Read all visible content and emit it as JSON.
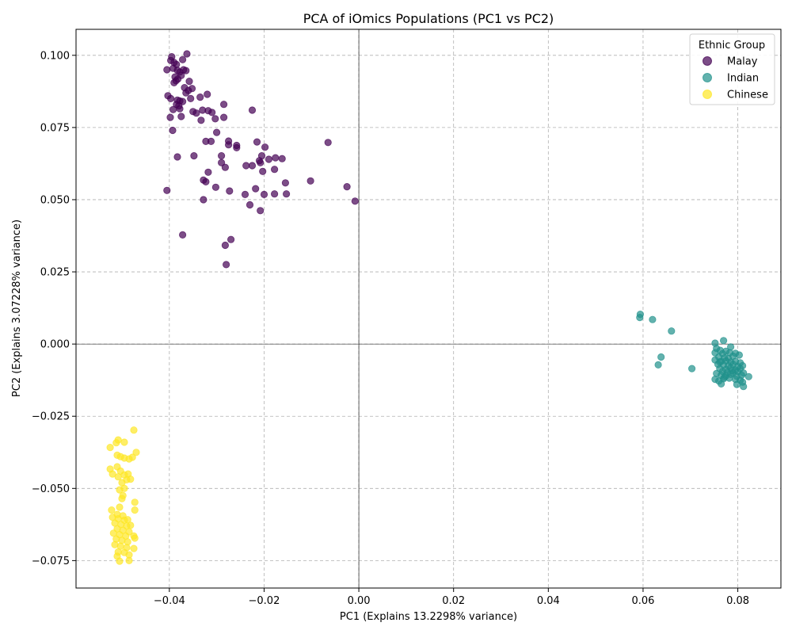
{
  "chart_data": {
    "type": "scatter",
    "title": "PCA of iOmics Populations (PC1 vs PC2)",
    "xlabel": "PC1 (Explains 13.2298% variance)",
    "ylabel": "PC2 (Explains 3.07228% variance)",
    "xlim": [
      -0.0597,
      0.0891
    ],
    "ylim": [
      -0.0845,
      0.109
    ],
    "xticks": [
      -0.04,
      -0.02,
      0.0,
      0.02,
      0.04,
      0.06,
      0.08
    ],
    "xtick_labels": [
      "−0.04",
      "−0.02",
      "0.00",
      "0.02",
      "0.04",
      "0.06",
      "0.08"
    ],
    "yticks": [
      -0.075,
      -0.05,
      -0.025,
      0.0,
      0.025,
      0.05,
      0.075,
      0.1
    ],
    "ytick_labels": [
      "−0.075",
      "−0.050",
      "−0.025",
      "0.000",
      "0.025",
      "0.050",
      "0.075",
      "0.100"
    ],
    "grid": true,
    "zero_lines": true,
    "legend": {
      "title": "Ethnic Group",
      "placement": "top-right"
    },
    "series": [
      {
        "name": "Malay",
        "color": "#440154",
        "points": [
          [
            -0.0395,
            0.0995
          ],
          [
            -0.0397,
            0.0982
          ],
          [
            -0.039,
            0.0975
          ],
          [
            -0.0385,
            0.0968
          ],
          [
            -0.0372,
            0.0985
          ],
          [
            -0.0363,
            0.1005
          ],
          [
            -0.0405,
            0.095
          ],
          [
            -0.0392,
            0.0955
          ],
          [
            -0.0383,
            0.0948
          ],
          [
            -0.0378,
            0.0942
          ],
          [
            -0.037,
            0.095
          ],
          [
            -0.0365,
            0.0947
          ],
          [
            -0.0388,
            0.0925
          ],
          [
            -0.0382,
            0.0918
          ],
          [
            -0.0375,
            0.093
          ],
          [
            -0.039,
            0.0905
          ],
          [
            -0.0386,
            0.0912
          ],
          [
            -0.0358,
            0.091
          ],
          [
            -0.0368,
            0.0888
          ],
          [
            -0.036,
            0.0878
          ],
          [
            -0.0352,
            0.0885
          ],
          [
            -0.0365,
            0.087
          ],
          [
            -0.032,
            0.0865
          ],
          [
            -0.0403,
            0.086
          ],
          [
            -0.0397,
            0.085
          ],
          [
            -0.0383,
            0.0845
          ],
          [
            -0.0378,
            0.0842
          ],
          [
            -0.0372,
            0.084
          ],
          [
            -0.0355,
            0.085
          ],
          [
            -0.0335,
            0.0855
          ],
          [
            -0.0385,
            0.083
          ],
          [
            -0.038,
            0.0825
          ],
          [
            -0.0392,
            0.0812
          ],
          [
            -0.0378,
            0.0815
          ],
          [
            -0.035,
            0.0805
          ],
          [
            -0.0343,
            0.08
          ],
          [
            -0.033,
            0.081
          ],
          [
            -0.0318,
            0.0808
          ],
          [
            -0.031,
            0.0802
          ],
          [
            -0.0285,
            0.083
          ],
          [
            -0.0225,
            0.081
          ],
          [
            -0.0398,
            0.0785
          ],
          [
            -0.0375,
            0.0788
          ],
          [
            -0.0333,
            0.0775
          ],
          [
            -0.0303,
            0.078
          ],
          [
            -0.0285,
            0.0785
          ],
          [
            -0.0393,
            0.074
          ],
          [
            -0.03,
            0.0733
          ],
          [
            -0.0323,
            0.0702
          ],
          [
            -0.0312,
            0.0702
          ],
          [
            -0.0275,
            0.0703
          ],
          [
            -0.0275,
            0.069
          ],
          [
            -0.0258,
            0.0688
          ],
          [
            -0.0258,
            0.068
          ],
          [
            -0.0215,
            0.07
          ],
          [
            -0.0198,
            0.0682
          ],
          [
            -0.0065,
            0.0698
          ],
          [
            -0.0383,
            0.0648
          ],
          [
            -0.0348,
            0.0652
          ],
          [
            -0.029,
            0.0652
          ],
          [
            -0.029,
            0.0628
          ],
          [
            -0.0282,
            0.0612
          ],
          [
            -0.0238,
            0.0618
          ],
          [
            -0.0225,
            0.0618
          ],
          [
            -0.0208,
            0.0628
          ],
          [
            -0.021,
            0.0635
          ],
          [
            -0.0205,
            0.0652
          ],
          [
            -0.019,
            0.064
          ],
          [
            -0.0176,
            0.0645
          ],
          [
            -0.0162,
            0.0642
          ],
          [
            -0.0203,
            0.0598
          ],
          [
            -0.0178,
            0.0605
          ],
          [
            -0.0318,
            0.0595
          ],
          [
            -0.0328,
            0.0568
          ],
          [
            -0.0323,
            0.0562
          ],
          [
            -0.0155,
            0.0558
          ],
          [
            -0.0102,
            0.0565
          ],
          [
            -0.0405,
            0.0532
          ],
          [
            -0.0302,
            0.0543
          ],
          [
            -0.0273,
            0.053
          ],
          [
            -0.0218,
            0.0538
          ],
          [
            -0.024,
            0.0518
          ],
          [
            -0.02,
            0.0518
          ],
          [
            -0.0178,
            0.052
          ],
          [
            -0.0153,
            0.052
          ],
          [
            -0.0025,
            0.0545
          ],
          [
            -0.0008,
            0.0495
          ],
          [
            -0.0328,
            0.05
          ],
          [
            -0.023,
            0.0482
          ],
          [
            -0.0208,
            0.0462
          ],
          [
            -0.0372,
            0.0378
          ],
          [
            -0.027,
            0.0362
          ],
          [
            -0.0282,
            0.0342
          ],
          [
            -0.028,
            0.0275
          ]
        ]
      },
      {
        "name": "Indian",
        "color": "#21918c",
        "points": [
          [
            0.0594,
            0.0103
          ],
          [
            0.0593,
            0.0092
          ],
          [
            0.062,
            0.0085
          ],
          [
            0.066,
            0.0045
          ],
          [
            0.0638,
            -0.0045
          ],
          [
            0.0632,
            -0.0072
          ],
          [
            0.0703,
            -0.0085
          ],
          [
            0.0752,
            0.0003
          ],
          [
            0.077,
            0.0012
          ],
          [
            0.0785,
            -0.001
          ],
          [
            0.0755,
            -0.0015
          ],
          [
            0.0763,
            -0.0022
          ],
          [
            0.0775,
            -0.0025
          ],
          [
            0.0752,
            -0.003
          ],
          [
            0.0768,
            -0.0033
          ],
          [
            0.0783,
            -0.003
          ],
          [
            0.0795,
            -0.0032
          ],
          [
            0.0803,
            -0.0038
          ],
          [
            0.076,
            -0.0045
          ],
          [
            0.0772,
            -0.0048
          ],
          [
            0.078,
            -0.005
          ],
          [
            0.079,
            -0.0042
          ],
          [
            0.0752,
            -0.0055
          ],
          [
            0.0765,
            -0.006
          ],
          [
            0.0775,
            -0.0058
          ],
          [
            0.0785,
            -0.0062
          ],
          [
            0.0795,
            -0.006
          ],
          [
            0.0805,
            -0.0065
          ],
          [
            0.0758,
            -0.007
          ],
          [
            0.077,
            -0.0072
          ],
          [
            0.078,
            -0.0075
          ],
          [
            0.079,
            -0.007
          ],
          [
            0.08,
            -0.0078
          ],
          [
            0.081,
            -0.0075
          ],
          [
            0.0762,
            -0.0085
          ],
          [
            0.0775,
            -0.0088
          ],
          [
            0.0785,
            -0.0082
          ],
          [
            0.0795,
            -0.009
          ],
          [
            0.0805,
            -0.0085
          ],
          [
            0.0768,
            -0.0095
          ],
          [
            0.0778,
            -0.0098
          ],
          [
            0.079,
            -0.01
          ],
          [
            0.08,
            -0.0095
          ],
          [
            0.0812,
            -0.01
          ],
          [
            0.0755,
            -0.0102
          ],
          [
            0.0765,
            -0.0108
          ],
          [
            0.0775,
            -0.011
          ],
          [
            0.0785,
            -0.0105
          ],
          [
            0.0798,
            -0.0112
          ],
          [
            0.0808,
            -0.0108
          ],
          [
            0.0823,
            -0.0113
          ],
          [
            0.077,
            -0.012
          ],
          [
            0.0782,
            -0.0118
          ],
          [
            0.0795,
            -0.0122
          ],
          [
            0.0805,
            -0.0125
          ],
          [
            0.0752,
            -0.0122
          ],
          [
            0.076,
            -0.0128
          ],
          [
            0.081,
            -0.0132
          ],
          [
            0.0765,
            -0.0138
          ],
          [
            0.0798,
            -0.014
          ],
          [
            0.0812,
            -0.0147
          ],
          [
            0.0772,
            -0.0115
          ],
          [
            0.0788,
            -0.0092
          ],
          [
            0.0762,
            -0.0062
          ]
        ]
      },
      {
        "name": "Chinese",
        "color": "#fde725",
        "points": [
          [
            -0.0475,
            -0.0298
          ],
          [
            -0.0508,
            -0.0332
          ],
          [
            -0.0512,
            -0.0342
          ],
          [
            -0.0495,
            -0.034
          ],
          [
            -0.0525,
            -0.0358
          ],
          [
            -0.047,
            -0.0375
          ],
          [
            -0.051,
            -0.0385
          ],
          [
            -0.0503,
            -0.039
          ],
          [
            -0.0495,
            -0.0395
          ],
          [
            -0.0485,
            -0.0398
          ],
          [
            -0.0478,
            -0.0392
          ],
          [
            -0.0525,
            -0.0433
          ],
          [
            -0.051,
            -0.0425
          ],
          [
            -0.0503,
            -0.044
          ],
          [
            -0.052,
            -0.045
          ],
          [
            -0.0495,
            -0.0453
          ],
          [
            -0.0487,
            -0.045
          ],
          [
            -0.0508,
            -0.046
          ],
          [
            -0.049,
            -0.047
          ],
          [
            -0.0482,
            -0.0468
          ],
          [
            -0.05,
            -0.048
          ],
          [
            -0.0495,
            -0.05
          ],
          [
            -0.0505,
            -0.0505
          ],
          [
            -0.0498,
            -0.0525
          ],
          [
            -0.05,
            -0.0535
          ],
          [
            -0.0473,
            -0.0548
          ],
          [
            -0.0522,
            -0.0575
          ],
          [
            -0.0505,
            -0.0565
          ],
          [
            -0.0473,
            -0.0575
          ],
          [
            -0.051,
            -0.059
          ],
          [
            -0.0498,
            -0.0595
          ],
          [
            -0.052,
            -0.06
          ],
          [
            -0.0508,
            -0.0605
          ],
          [
            -0.0495,
            -0.061
          ],
          [
            -0.0488,
            -0.0608
          ],
          [
            -0.0515,
            -0.062
          ],
          [
            -0.0502,
            -0.0625
          ],
          [
            -0.049,
            -0.063
          ],
          [
            -0.0482,
            -0.0628
          ],
          [
            -0.051,
            -0.064
          ],
          [
            -0.0498,
            -0.0645
          ],
          [
            -0.0485,
            -0.065
          ],
          [
            -0.0518,
            -0.0655
          ],
          [
            -0.0505,
            -0.066
          ],
          [
            -0.0492,
            -0.0665
          ],
          [
            -0.0475,
            -0.0665
          ],
          [
            -0.0512,
            -0.0675
          ],
          [
            -0.05,
            -0.068
          ],
          [
            -0.0488,
            -0.0685
          ],
          [
            -0.0473,
            -0.0672
          ],
          [
            -0.0515,
            -0.0695
          ],
          [
            -0.0503,
            -0.07
          ],
          [
            -0.049,
            -0.0705
          ],
          [
            -0.0475,
            -0.0708
          ],
          [
            -0.0508,
            -0.072
          ],
          [
            -0.0495,
            -0.0722
          ],
          [
            -0.0485,
            -0.073
          ],
          [
            -0.051,
            -0.0735
          ],
          [
            -0.0505,
            -0.0752
          ],
          [
            -0.0485,
            -0.075
          ]
        ]
      }
    ]
  }
}
